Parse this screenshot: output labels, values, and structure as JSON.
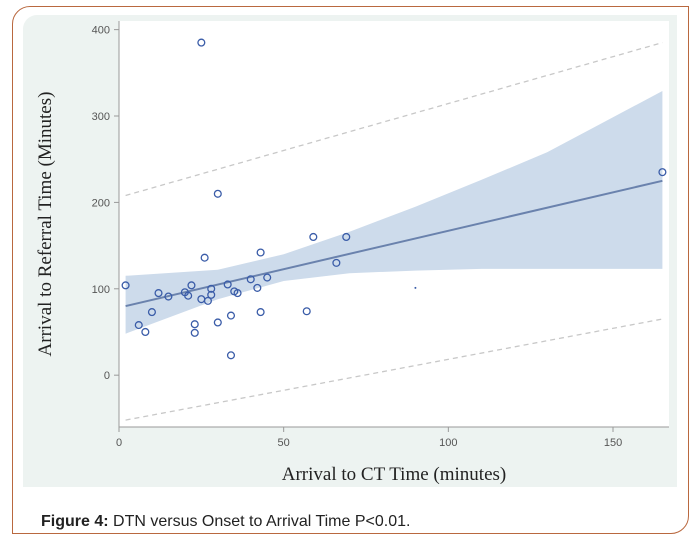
{
  "chart_data": {
    "type": "scatter",
    "xlabel": "Arrival to CT Time (minutes)",
    "ylabel": "Arrival to Referral Time (Minutes)",
    "xlim": [
      0,
      167
    ],
    "ylim": [
      -60,
      410
    ],
    "xticks": [
      0,
      50,
      100,
      150
    ],
    "yticks": [
      0,
      100,
      200,
      300,
      400
    ],
    "grid": false,
    "points": [
      {
        "x": 2,
        "y": 104
      },
      {
        "x": 6,
        "y": 58
      },
      {
        "x": 8,
        "y": 50
      },
      {
        "x": 10,
        "y": 73
      },
      {
        "x": 12,
        "y": 95
      },
      {
        "x": 15,
        "y": 91
      },
      {
        "x": 20,
        "y": 96
      },
      {
        "x": 21,
        "y": 92
      },
      {
        "x": 22,
        "y": 104
      },
      {
        "x": 23,
        "y": 59
      },
      {
        "x": 23,
        "y": 49
      },
      {
        "x": 25,
        "y": 88
      },
      {
        "x": 26,
        "y": 136
      },
      {
        "x": 27,
        "y": 86
      },
      {
        "x": 28,
        "y": 93
      },
      {
        "x": 28,
        "y": 100
      },
      {
        "x": 30,
        "y": 61
      },
      {
        "x": 30,
        "y": 210
      },
      {
        "x": 33,
        "y": 105
      },
      {
        "x": 34,
        "y": 69
      },
      {
        "x": 34,
        "y": 23
      },
      {
        "x": 35,
        "y": 97
      },
      {
        "x": 36,
        "y": 95
      },
      {
        "x": 40,
        "y": 111
      },
      {
        "x": 42,
        "y": 101
      },
      {
        "x": 43,
        "y": 142
      },
      {
        "x": 43,
        "y": 73
      },
      {
        "x": 45,
        "y": 113
      },
      {
        "x": 57,
        "y": 74
      },
      {
        "x": 59,
        "y": 160
      },
      {
        "x": 66,
        "y": 130
      },
      {
        "x": 69,
        "y": 160
      },
      {
        "x": 25,
        "y": 385
      },
      {
        "x": 165,
        "y": 235
      }
    ],
    "dots": [
      {
        "x": 90,
        "y": 101
      }
    ],
    "fit_line": {
      "x": [
        2,
        165
      ],
      "y": [
        80,
        225
      ]
    },
    "confidence_band": {
      "x": [
        2,
        30,
        50,
        70,
        90,
        110,
        130,
        165
      ],
      "lower": [
        48,
        88,
        109,
        118,
        121,
        123,
        123,
        123
      ],
      "upper": [
        115,
        122,
        140,
        166,
        195,
        226,
        258,
        329
      ]
    },
    "prediction_interval": {
      "x": [
        2,
        165
      ],
      "lower": [
        -52,
        65
      ],
      "upper": [
        208,
        385
      ]
    },
    "colors": {
      "marker": "#3a5ca8",
      "fit_line": "#6a82ad",
      "band": "#cddbeb",
      "prediction": "#c8c8c8"
    }
  },
  "caption": {
    "label": "Figure 4:",
    "text": " DTN versus Onset to Arrival Time P<0.01."
  }
}
